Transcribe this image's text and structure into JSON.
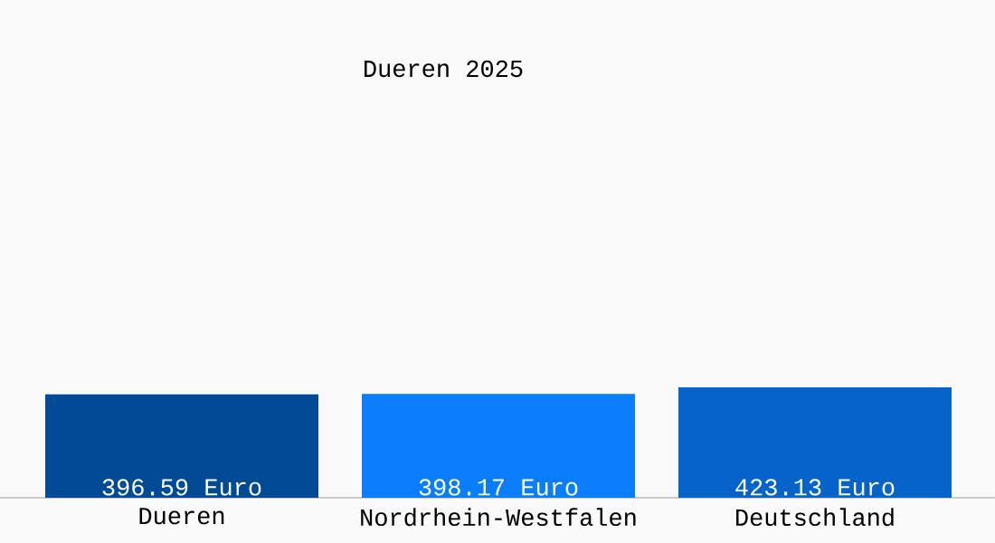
{
  "chart_data": {
    "type": "bar",
    "title": "Dueren 2025",
    "categories": [
      "Dueren",
      "Nordrhein-Westfalen",
      "Deutschland"
    ],
    "values": [
      396.59,
      398.17,
      423.13
    ],
    "value_labels": [
      "396.59 Euro",
      "398.17 Euro",
      "423.13 Euro"
    ],
    "colors": [
      "#004a96",
      "#0a7dfa",
      "#0563c9"
    ]
  }
}
